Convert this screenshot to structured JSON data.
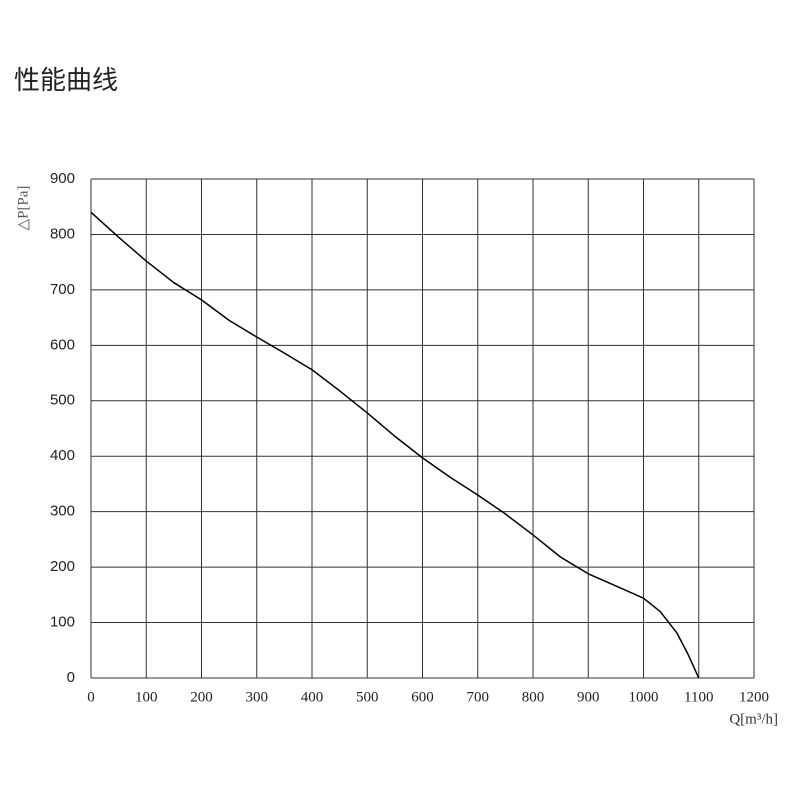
{
  "chart_data": {
    "type": "line",
    "title": "性能曲线",
    "x_label": "Q[m³/h]",
    "y_label": "△P[Pa]",
    "x": [
      0,
      50,
      100,
      150,
      200,
      250,
      300,
      350,
      400,
      450,
      500,
      550,
      600,
      650,
      700,
      750,
      800,
      850,
      900,
      950,
      1000,
      1030,
      1060,
      1080,
      1100
    ],
    "values": [
      840,
      795,
      752,
      713,
      682,
      645,
      615,
      586,
      556,
      518,
      478,
      436,
      397,
      362,
      330,
      296,
      258,
      218,
      188,
      166,
      144,
      120,
      82,
      44,
      0
    ],
    "color": "#000000",
    "xlim": [
      0,
      1200
    ],
    "xticks": [
      0,
      100,
      200,
      300,
      400,
      500,
      600,
      700,
      800,
      900,
      1000,
      1100,
      1200
    ],
    "ylim": [
      0,
      900
    ],
    "yticks": [
      0,
      100,
      200,
      300,
      400,
      500,
      600,
      700,
      800,
      900
    ],
    "grid": true
  }
}
